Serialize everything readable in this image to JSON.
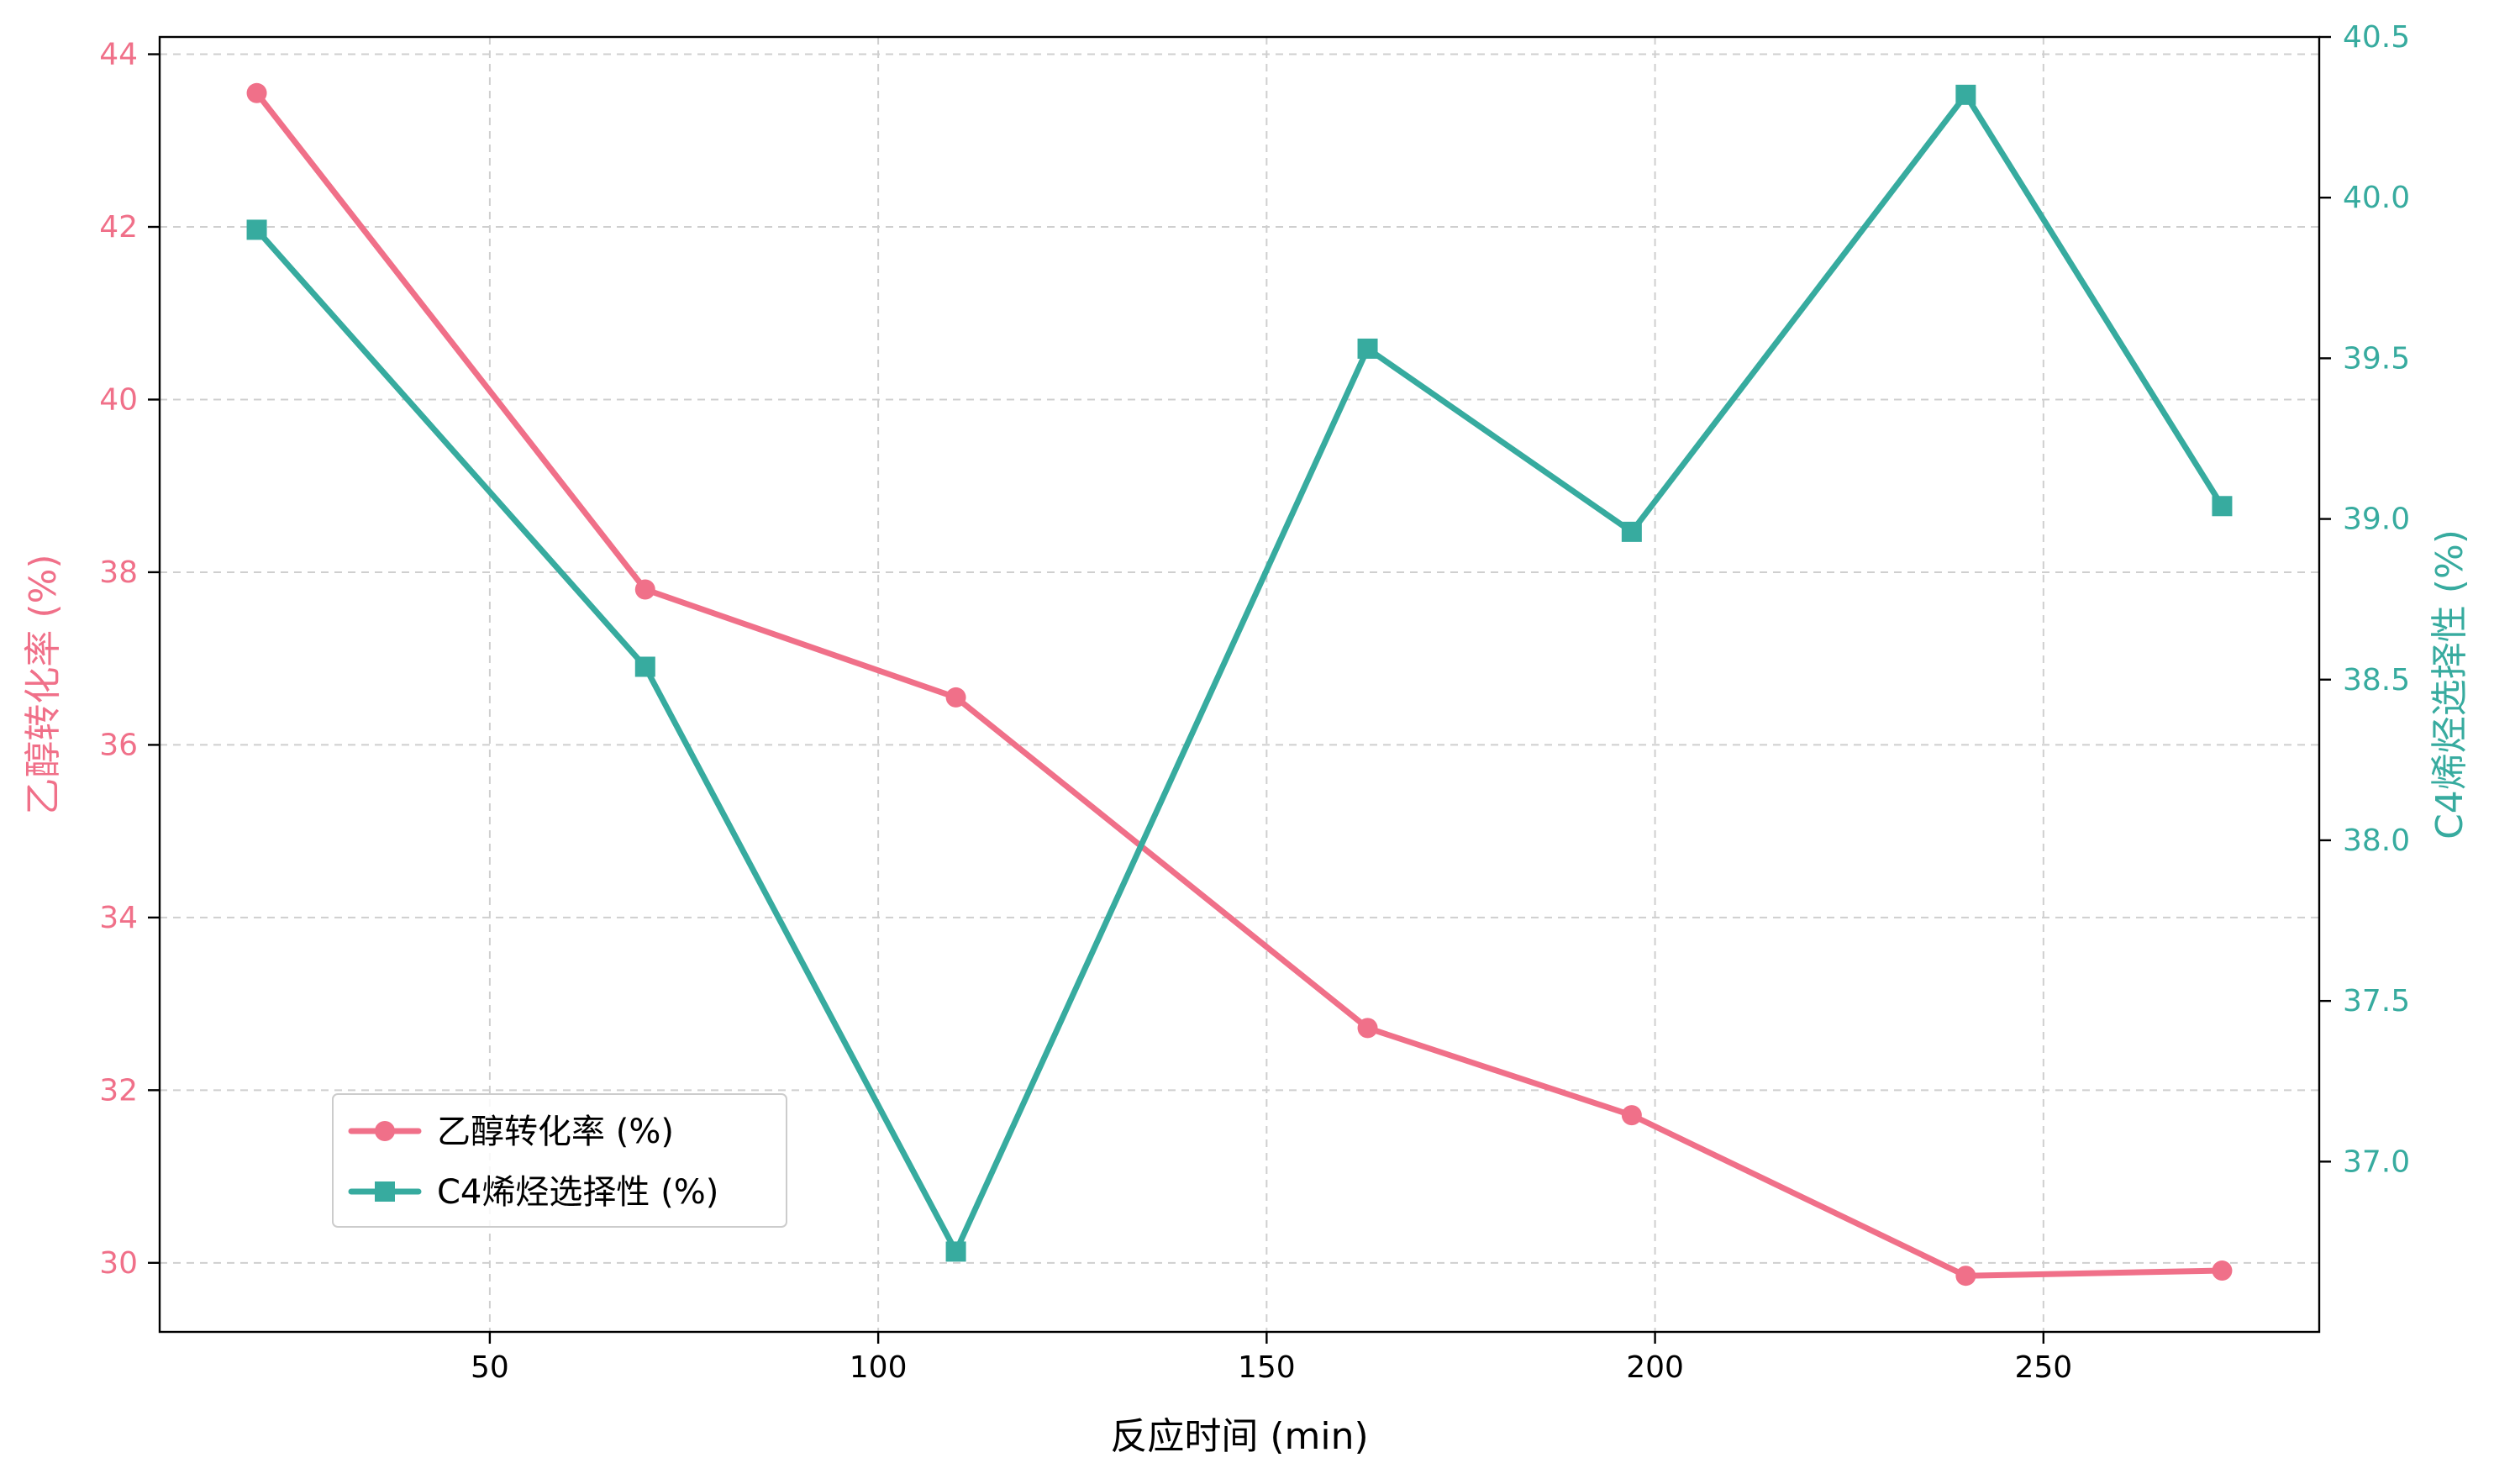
{
  "chart_data": {
    "type": "line",
    "title": "",
    "xlabel": "反应时间 (min)",
    "ylabel_left": "乙醇转化率 (%)",
    "ylabel_right": "C4烯烃选择性 (%)",
    "x": [
      20,
      70,
      110,
      163,
      197,
      240,
      273
    ],
    "xlim": [
      7.5,
      285.5
    ],
    "ylim_left": [
      29.2,
      44.2
    ],
    "ylim_right": [
      36.47,
      40.5
    ],
    "xticks": [
      50,
      100,
      150,
      200,
      250
    ],
    "yticks_left": [
      30,
      32,
      34,
      36,
      38,
      40,
      42,
      44
    ],
    "yticks_right": [
      37.0,
      37.5,
      38.0,
      38.5,
      39.0,
      39.5,
      40.0,
      40.5
    ],
    "grid": true,
    "legend_position": "lower-left",
    "series": [
      {
        "name": "乙醇转化率 (%)",
        "axis": "left",
        "marker": "circle",
        "color": "#f07089",
        "values": [
          43.55,
          37.8,
          36.55,
          32.72,
          31.71,
          29.85,
          29.91
        ]
      },
      {
        "name": "C4烯烃选择性 (%)",
        "axis": "right",
        "marker": "square",
        "color": "#37ab9f",
        "values": [
          39.9,
          38.54,
          36.72,
          39.53,
          38.96,
          40.32,
          39.04
        ]
      }
    ]
  }
}
